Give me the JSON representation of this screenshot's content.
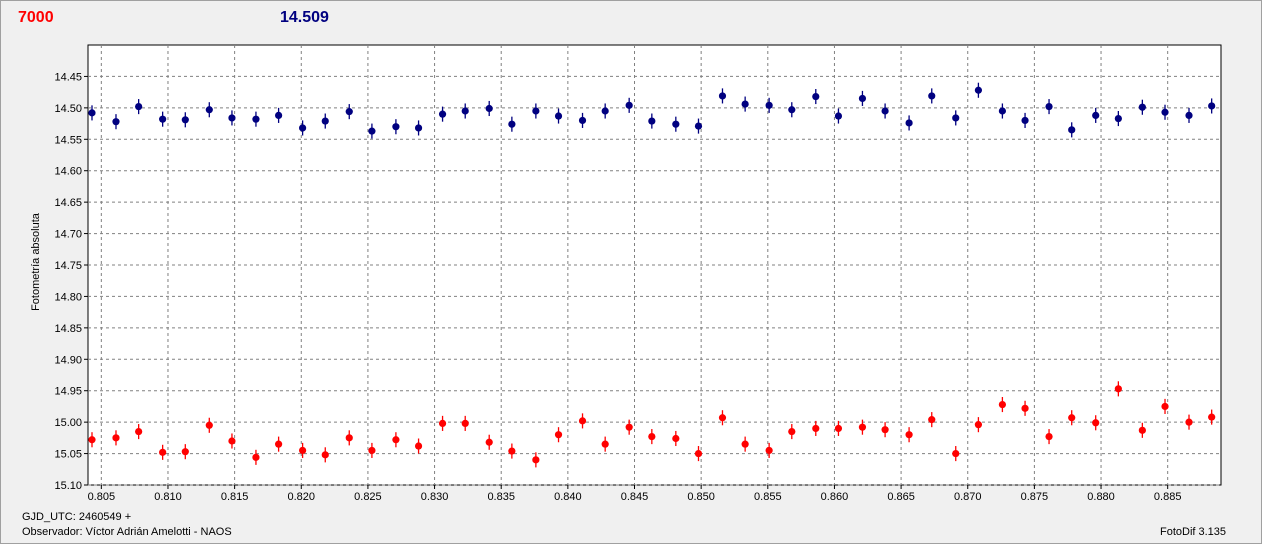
{
  "header": {
    "red_value": "7000",
    "blue_value": "14.509"
  },
  "footer": {
    "gjd": "GJD_UTC: 2460549 +",
    "observer": "Observador: Víctor Adrián Amelotti - NAOS",
    "software": "FotoDif 3.135"
  },
  "chart_data": {
    "type": "scatter",
    "ylabel": "Fotometría absoluta",
    "xlim": [
      0.804,
      0.889
    ],
    "ylim": [
      14.4,
      15.1
    ],
    "y_inverted": true,
    "grid": true,
    "x_ticks": [
      "0.805",
      "0.810",
      "0.815",
      "0.820",
      "0.825",
      "0.830",
      "0.835",
      "0.840",
      "0.845",
      "0.850",
      "0.855",
      "0.860",
      "0.865",
      "0.870",
      "0.875",
      "0.880",
      "0.885"
    ],
    "y_ticks": [
      "14.45",
      "14.50",
      "14.55",
      "14.60",
      "14.65",
      "14.70",
      "14.75",
      "14.80",
      "14.85",
      "14.90",
      "14.95",
      "15.00",
      "15.05",
      "15.10"
    ],
    "series": [
      {
        "color": "#000080",
        "x": [
          0.8043,
          0.8061,
          0.8078,
          0.8096,
          0.8113,
          0.8131,
          0.8148,
          0.8166,
          0.8183,
          0.8201,
          0.8218,
          0.8236,
          0.8253,
          0.8271,
          0.8288,
          0.8306,
          0.8323,
          0.8341,
          0.8358,
          0.8376,
          0.8393,
          0.8411,
          0.8428,
          0.8446,
          0.8463,
          0.8481,
          0.8498,
          0.8516,
          0.8533,
          0.8551,
          0.8568,
          0.8586,
          0.8603,
          0.8621,
          0.8638,
          0.8656,
          0.8673,
          0.8691,
          0.8708,
          0.8726,
          0.8743,
          0.8761,
          0.8778,
          0.8796,
          0.8813,
          0.8831,
          0.8848,
          0.8866,
          0.8883
        ],
        "y": [
          14.508,
          14.522,
          14.498,
          14.518,
          14.519,
          14.503,
          14.516,
          14.518,
          14.512,
          14.532,
          14.521,
          14.506,
          14.537,
          14.53,
          14.532,
          14.51,
          14.505,
          14.501,
          14.526,
          14.505,
          14.513,
          14.52,
          14.505,
          14.496,
          14.521,
          14.526,
          14.529,
          14.481,
          14.494,
          14.496,
          14.503,
          14.482,
          14.513,
          14.485,
          14.505,
          14.524,
          14.481,
          14.516,
          14.472,
          14.505,
          14.52,
          14.498,
          14.535,
          14.512,
          14.517,
          14.499,
          14.507,
          14.512,
          14.497
        ]
      },
      {
        "color": "#ff0000",
        "x": [
          0.8043,
          0.8061,
          0.8078,
          0.8096,
          0.8113,
          0.8131,
          0.8148,
          0.8166,
          0.8183,
          0.8201,
          0.8218,
          0.8236,
          0.8253,
          0.8271,
          0.8288,
          0.8306,
          0.8323,
          0.8341,
          0.8358,
          0.8376,
          0.8393,
          0.8411,
          0.8428,
          0.8446,
          0.8463,
          0.8481,
          0.8498,
          0.8516,
          0.8533,
          0.8551,
          0.8568,
          0.8586,
          0.8603,
          0.8621,
          0.8638,
          0.8656,
          0.8673,
          0.8691,
          0.8708,
          0.8726,
          0.8743,
          0.8761,
          0.8778,
          0.8796,
          0.8813,
          0.8831,
          0.8848,
          0.8866,
          0.8883
        ],
        "y": [
          15.028,
          15.025,
          15.015,
          15.048,
          15.047,
          15.005,
          15.03,
          15.056,
          15.035,
          15.045,
          15.052,
          15.025,
          15.045,
          15.028,
          15.038,
          15.002,
          15.002,
          15.032,
          15.046,
          15.06,
          15.02,
          14.998,
          15.035,
          15.008,
          15.023,
          15.026,
          15.05,
          14.993,
          15.035,
          15.045,
          15.015,
          15.01,
          15.01,
          15.008,
          15.012,
          15.02,
          14.996,
          15.05,
          15.004,
          14.972,
          14.978,
          15.023,
          14.993,
          15.001,
          14.947,
          15.013,
          14.975,
          15.0,
          14.992
        ]
      }
    ],
    "error_bar": 0.012
  }
}
